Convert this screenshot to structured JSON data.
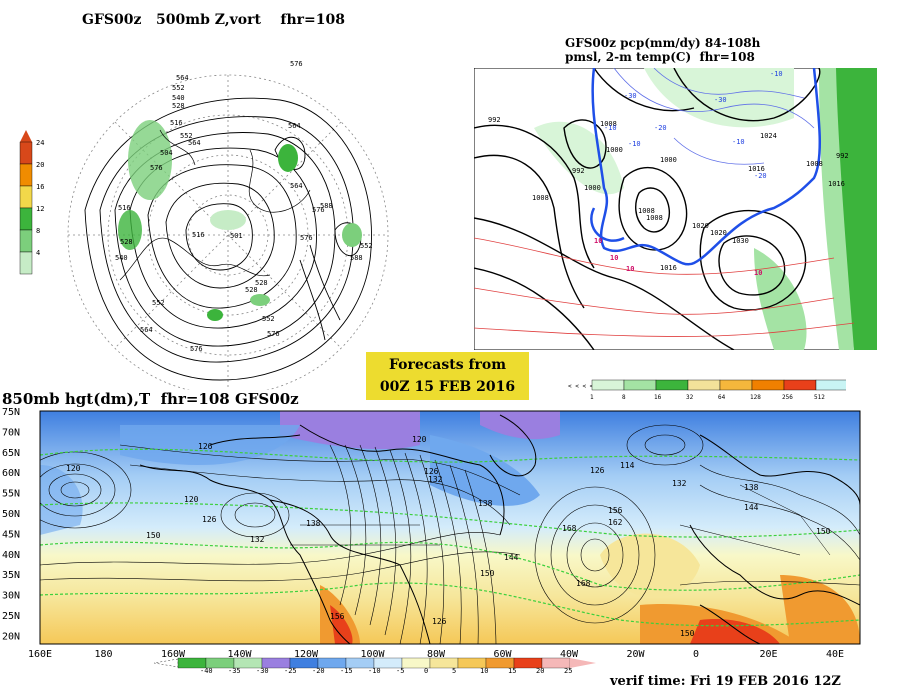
{
  "panel_500mb": {
    "title": "GFS00z   500mb Z,vort    fhr=108",
    "contour_labels": [
      "576",
      "564",
      "552",
      "540",
      "528",
      "516",
      "552",
      "564",
      "576",
      "504",
      "516",
      "528",
      "540",
      "564",
      "576",
      "588",
      "552",
      "564",
      "576",
      "588",
      "516",
      "501",
      "528",
      "552",
      "564",
      "576",
      "552",
      "576",
      "528"
    ],
    "colorbar": {
      "ticks": [
        "24",
        "20",
        "16",
        "12",
        "8",
        "4"
      ],
      "colors": [
        "#d8481a",
        "#f08c00",
        "#f2d84a",
        "#3cb43c",
        "#7ccf7c",
        "#c6ecc6"
      ]
    }
  },
  "panel_pcp": {
    "title_line1": "GFS00z pcp(mm/dy) 84-108h",
    "title_line2": "pmsl, 2-m temp(C)  fhr=108",
    "pressure_labels": [
      "992",
      "1008",
      "1000",
      "992",
      "1008",
      "1000",
      "1008",
      "1016",
      "1020",
      "1024",
      "1016",
      "1016",
      "1000",
      "1008",
      "1030",
      "1020",
      "992",
      "1008"
    ],
    "temp_labels_blue": [
      "-30",
      "-10",
      "-10",
      "-20",
      "-30",
      "-10",
      "-20",
      "-10"
    ],
    "temp_labels_red": [
      "10",
      "10",
      "10",
      "10"
    ],
    "colorbar": {
      "ticks": [
        "1",
        "8",
        "16",
        "32",
        "64",
        "128",
        "256",
        "512"
      ],
      "colors": [
        "#d8f5d8",
        "#a4e3a4",
        "#3cb43c",
        "#f3e29a",
        "#f5b73c",
        "#f08000",
        "#e8401a",
        "#c8f4f4"
      ]
    }
  },
  "banner": {
    "line1": "Forecasts from",
    "line2": "00Z 15 FEB 2016"
  },
  "panel_850mb": {
    "title": "850mb hgt(dm),T  fhr=108 GFS00z",
    "lat_labels": [
      "75N",
      "70N",
      "65N",
      "60N",
      "55N",
      "50N",
      "45N",
      "40N",
      "35N",
      "30N",
      "25N",
      "20N"
    ],
    "lon_labels": [
      "160E",
      "180",
      "160W",
      "140W",
      "120W",
      "100W",
      "80W",
      "60W",
      "40W",
      "20W",
      "0",
      "20E",
      "40E"
    ],
    "height_labels": [
      "120",
      "126",
      "120",
      "126",
      "132",
      "138",
      "150",
      "144",
      "138",
      "132",
      "126",
      "120",
      "114",
      "132",
      "126",
      "138",
      "156",
      "162",
      "168",
      "150",
      "144",
      "150",
      "156",
      "168",
      "150",
      "126"
    ],
    "colorbar": {
      "ticks": [
        "-40",
        "-35",
        "-30",
        "-25",
        "-20",
        "-15",
        "-10",
        "-5",
        "0",
        "5",
        "10",
        "15",
        "20",
        "25"
      ],
      "colors": [
        "#3cb43c",
        "#7ccf7c",
        "#b4e6b4",
        "#9a7fe0",
        "#3f7fe0",
        "#6fa8ee",
        "#a4cdf5",
        "#d4ecfb",
        "#f8f8c8",
        "#f6e69a",
        "#f5c858",
        "#f09a30",
        "#e8401a",
        "#f5b8b8"
      ]
    }
  },
  "verif": "verif time: Fri 19 FEB 2016 12Z"
}
